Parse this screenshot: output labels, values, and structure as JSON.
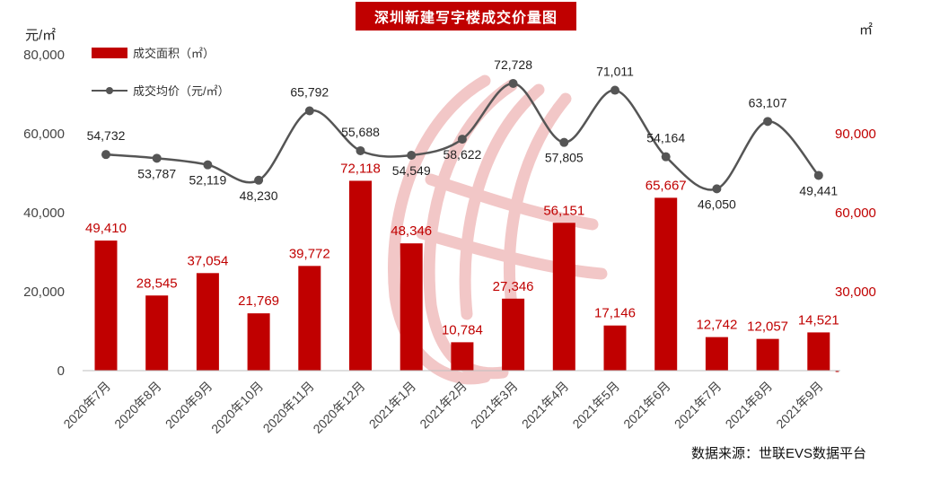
{
  "title": "深圳新建写字楼成交价量图",
  "left_unit": "元/㎡",
  "right_unit": "㎡",
  "source": "数据来源：世联EVS数据平台",
  "colors": {
    "bar": "#c00000",
    "line": "#555555",
    "bar_label": "#c00000",
    "line_label": "#222222",
    "right_axis": "#c00000"
  },
  "chart_data": {
    "type": "bar",
    "categories": [
      "2020年7月",
      "2020年8月",
      "2020年9月",
      "2020年10月",
      "2020年11月",
      "2020年12月",
      "2021年1月",
      "2021年2月",
      "2021年3月",
      "2021年4月",
      "2021年5月",
      "2021年6月",
      "2021年7月",
      "2021年8月",
      "2021年9月"
    ],
    "series": [
      {
        "name": "成交面积（㎡）",
        "type": "bar",
        "axis": "right",
        "values": [
          49410,
          28545,
          37054,
          21769,
          39772,
          72118,
          48346,
          10784,
          27346,
          56151,
          17146,
          65667,
          12742,
          12057,
          14521
        ],
        "labels": [
          "49,410",
          "28,545",
          "37,054",
          "21,769",
          "39,772",
          "72,118",
          "48,346",
          "10,784",
          "27,346",
          "56,151",
          "17,146",
          "65,667",
          "12,742",
          "12,057",
          "14,521"
        ]
      },
      {
        "name": "成交均价（元/㎡）",
        "type": "line",
        "axis": "left",
        "values": [
          54732,
          53787,
          52119,
          48230,
          65792,
          55688,
          54549,
          58622,
          72728,
          57805,
          71011,
          54164,
          46050,
          63107,
          49441
        ],
        "labels": [
          "54,732",
          "53,787",
          "52,119",
          "48,230",
          "65,792",
          "55,688",
          "54,549",
          "58,622",
          "72,728",
          "57,805",
          "71,011",
          "54,164",
          "46,050",
          "63,107",
          "49,441"
        ]
      }
    ],
    "left_axis": {
      "ylim": [
        0,
        80000
      ],
      "ticks": [
        "0",
        "20,000",
        "40,000",
        "60,000",
        "80,000"
      ]
    },
    "right_axis": {
      "ylim": [
        0,
        120000
      ],
      "ticks": [
        "-",
        "30,000",
        "60,000",
        "90,000"
      ]
    },
    "grid": false,
    "legend": "top-left"
  }
}
